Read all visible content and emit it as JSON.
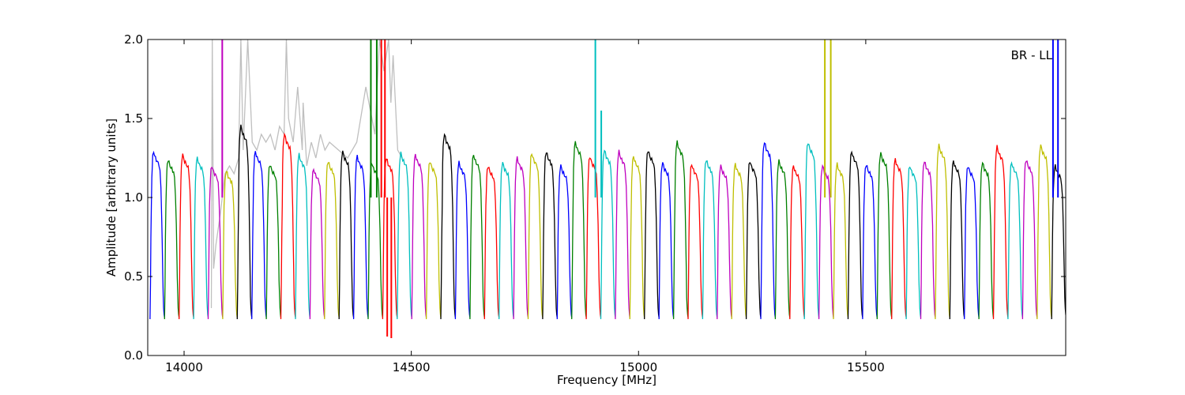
{
  "chart_data": {
    "type": "line",
    "title": "",
    "annotation": "BR - LL",
    "xlabel": "Frequency [MHz]",
    "ylabel": "Amplitude [arbitrary units]",
    "xlim": [
      13920,
      15940
    ],
    "ylim": [
      0.0,
      2.0
    ],
    "xticks": [
      14000,
      14500,
      15000,
      15500
    ],
    "yticks": [
      0.0,
      0.5,
      1.0,
      1.5,
      2.0
    ],
    "ytick_labels": [
      "0.0",
      "0.5",
      "1.0",
      "1.5",
      "2.0"
    ],
    "grid": false,
    "legend": "none",
    "channel_width_mhz": 32,
    "channel_start_mhz": 13925,
    "passband": {
      "x_offset_mhz": [
        0,
        1,
        2,
        3,
        4,
        5,
        6,
        8,
        10,
        12,
        14,
        16,
        18,
        20,
        22,
        24,
        26,
        27,
        28,
        29,
        30,
        31,
        32
      ],
      "shape": [
        0.23,
        0.45,
        0.75,
        0.95,
        1.08,
        1.16,
        1.21,
        1.24,
        1.22,
        1.2,
        1.19,
        1.18,
        1.17,
        1.16,
        1.12,
        1.02,
        0.82,
        0.66,
        0.5,
        0.38,
        0.3,
        0.26,
        0.24
      ]
    },
    "series": [
      {
        "color": "#0000ff",
        "peak": 1.29
      },
      {
        "color": "#008000",
        "peak": 1.24
      },
      {
        "color": "#ff0000",
        "peak": 1.27
      },
      {
        "color": "#00bfbf",
        "peak": 1.25
      },
      {
        "color": "#bf00bf",
        "peak": 1.2
      },
      {
        "color": "#bfbf00",
        "peak": 1.17
      },
      {
        "color": "#000000",
        "peak": 1.45
      },
      {
        "color": "#0000ff",
        "peak": 1.29
      },
      {
        "color": "#008000",
        "peak": 1.21
      },
      {
        "color": "#ff0000",
        "peak": 1.4
      },
      {
        "color": "#00bfbf",
        "peak": 1.27
      },
      {
        "color": "#bf00bf",
        "peak": 1.18
      },
      {
        "color": "#bfbf00",
        "peak": 1.23
      },
      {
        "color": "#000000",
        "peak": 1.29
      },
      {
        "color": "#0000ff",
        "peak": 1.26
      },
      {
        "color": "#008000",
        "peak": 1.22
      },
      {
        "color": "#ff0000",
        "peak": 1.25
      },
      {
        "color": "#00bfbf",
        "peak": 1.28
      },
      {
        "color": "#bf00bf",
        "peak": 1.27
      },
      {
        "color": "#bfbf00",
        "peak": 1.23
      },
      {
        "color": "#000000",
        "peak": 1.4
      },
      {
        "color": "#0000ff",
        "peak": 1.22
      },
      {
        "color": "#008000",
        "peak": 1.27
      },
      {
        "color": "#ff0000",
        "peak": 1.2
      },
      {
        "color": "#00bfbf",
        "peak": 1.22
      },
      {
        "color": "#bf00bf",
        "peak": 1.25
      },
      {
        "color": "#bfbf00",
        "peak": 1.28
      },
      {
        "color": "#000000",
        "peak": 1.29
      },
      {
        "color": "#0000ff",
        "peak": 1.2
      },
      {
        "color": "#008000",
        "peak": 1.35
      },
      {
        "color": "#ff0000",
        "peak": 1.26
      },
      {
        "color": "#00bfbf",
        "peak": 1.3
      },
      {
        "color": "#bf00bf",
        "peak": 1.29
      },
      {
        "color": "#bfbf00",
        "peak": 1.26
      },
      {
        "color": "#000000",
        "peak": 1.3
      },
      {
        "color": "#0000ff",
        "peak": 1.22
      },
      {
        "color": "#008000",
        "peak": 1.35
      },
      {
        "color": "#ff0000",
        "peak": 1.21
      },
      {
        "color": "#00bfbf",
        "peak": 1.24
      },
      {
        "color": "#bf00bf",
        "peak": 1.2
      },
      {
        "color": "#bfbf00",
        "peak": 1.21
      },
      {
        "color": "#000000",
        "peak": 1.23
      },
      {
        "color": "#0000ff",
        "peak": 1.35
      },
      {
        "color": "#008000",
        "peak": 1.23
      },
      {
        "color": "#ff0000",
        "peak": 1.2
      },
      {
        "color": "#00bfbf",
        "peak": 1.35
      },
      {
        "color": "#bf00bf",
        "peak": 1.2
      },
      {
        "color": "#bfbf00",
        "peak": 1.21
      },
      {
        "color": "#000000",
        "peak": 1.29
      },
      {
        "color": "#0000ff",
        "peak": 1.21
      },
      {
        "color": "#008000",
        "peak": 1.28
      },
      {
        "color": "#ff0000",
        "peak": 1.24
      },
      {
        "color": "#00bfbf",
        "peak": 1.2
      },
      {
        "color": "#bf00bf",
        "peak": 1.23
      },
      {
        "color": "#bfbf00",
        "peak": 1.33
      },
      {
        "color": "#000000",
        "peak": 1.23
      },
      {
        "color": "#0000ff",
        "peak": 1.2
      },
      {
        "color": "#008000",
        "peak": 1.22
      },
      {
        "color": "#ff0000",
        "peak": 1.32
      },
      {
        "color": "#00bfbf",
        "peak": 1.22
      },
      {
        "color": "#bf00bf",
        "peak": 1.24
      },
      {
        "color": "#bfbf00",
        "peak": 1.33
      },
      {
        "color": "#000000",
        "peak": 1.2
      }
    ],
    "rfi_spikes": [
      {
        "x": 14084,
        "y": 2.0,
        "color": "#bf00bf"
      },
      {
        "x": 14411,
        "y": 2.0,
        "color": "#008000"
      },
      {
        "x": 14424,
        "y": 2.0,
        "color": "#008000"
      },
      {
        "x": 14434,
        "y": 2.0,
        "color": "#ff0000"
      },
      {
        "x": 14442,
        "y": 2.0,
        "color": "#ff0000"
      },
      {
        "x": 14447,
        "y": 0.12,
        "color": "#ff0000"
      },
      {
        "x": 14456,
        "y": 0.11,
        "color": "#ff0000"
      },
      {
        "x": 14905,
        "y": 2.0,
        "color": "#00bfbf"
      },
      {
        "x": 14918,
        "y": 1.55,
        "color": "#00bfbf"
      },
      {
        "x": 15410,
        "y": 2.0,
        "color": "#bfbf00"
      },
      {
        "x": 15423,
        "y": 2.0,
        "color": "#bfbf00"
      },
      {
        "x": 15912,
        "y": 2.0,
        "color": "#0000ff"
      },
      {
        "x": 15923,
        "y": 2.0,
        "color": "#0000ff"
      }
    ],
    "background_trace": {
      "color": "#bfbfbf",
      "x": [
        14060,
        14062,
        14065,
        14070,
        14080,
        14090,
        14100,
        14110,
        14120,
        14125,
        14130,
        14140,
        14150,
        14160,
        14170,
        14180,
        14190,
        14200,
        14210,
        14220,
        14225,
        14230,
        14240,
        14250,
        14260,
        14262,
        14270,
        14280,
        14290,
        14300,
        14310,
        14320,
        14340,
        14360,
        14380,
        14400,
        14420,
        14430,
        14440,
        14450,
        14455,
        14460,
        14470,
        14480
      ],
      "y": [
        0.3,
        2.0,
        0.55,
        0.7,
        0.9,
        1.15,
        1.2,
        1.15,
        1.25,
        2.0,
        1.3,
        2.0,
        1.35,
        1.3,
        1.4,
        1.35,
        1.4,
        1.3,
        1.45,
        1.4,
        2.0,
        1.5,
        1.35,
        1.7,
        1.3,
        1.6,
        1.2,
        1.35,
        1.25,
        1.4,
        1.3,
        1.35,
        1.3,
        1.25,
        1.35,
        1.7,
        1.4,
        2.0,
        1.8,
        2.0,
        1.6,
        1.9,
        1.3,
        1.25
      ]
    }
  }
}
